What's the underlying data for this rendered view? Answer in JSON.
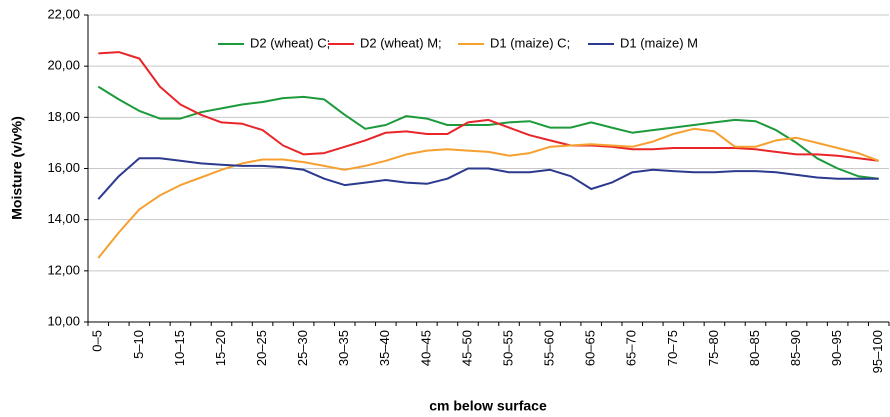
{
  "chart_data": {
    "type": "line",
    "x_label": "cm below surface",
    "y_label": "Moisture (v/v%)",
    "categories": [
      "0–5",
      null,
      "5–10",
      null,
      "10–15",
      null,
      "15–20",
      null,
      "20–25",
      null,
      "25–30",
      null,
      "30–35",
      null,
      "35–40",
      null,
      "40–45",
      null,
      "45–50",
      null,
      "50–55",
      null,
      "55–60",
      null,
      "60–65",
      null,
      "65–70",
      null,
      "70–75",
      null,
      "75–80",
      null,
      "80–85",
      null,
      "85–90",
      null,
      "90–95",
      null,
      "95–100"
    ],
    "ylim": [
      10,
      22
    ],
    "yticks": [
      {
        "value": 10,
        "label": "10,00"
      },
      {
        "value": 12,
        "label": "12,00"
      },
      {
        "value": 14,
        "label": "14,00"
      },
      {
        "value": 16,
        "label": "16,00"
      },
      {
        "value": 18,
        "label": "18,00"
      },
      {
        "value": 20,
        "label": "20,00"
      },
      {
        "value": 22,
        "label": "22,00"
      }
    ],
    "grid": true,
    "legend": "top",
    "series": [
      {
        "name": "D2 (wheat) C;",
        "color": "#1c9a3c",
        "values": [
          19.2,
          18.7,
          18.25,
          17.95,
          17.95,
          18.2,
          18.35,
          18.5,
          18.6,
          18.75,
          18.8,
          18.7,
          18.1,
          17.55,
          17.7,
          18.05,
          17.95,
          17.7,
          17.7,
          17.7,
          17.8,
          17.85,
          17.6,
          17.6,
          17.8,
          17.6,
          17.4,
          17.5,
          17.6,
          17.7,
          17.8,
          17.9,
          17.85,
          17.5,
          17.0,
          16.4,
          16.0,
          15.7,
          15.6
        ]
      },
      {
        "name": "D2 (wheat) M;",
        "color": "#e8262a",
        "values": [
          20.5,
          20.55,
          20.3,
          19.2,
          18.5,
          18.1,
          17.8,
          17.75,
          17.5,
          16.9,
          16.55,
          16.6,
          16.85,
          17.1,
          17.4,
          17.45,
          17.35,
          17.35,
          17.8,
          17.9,
          17.6,
          17.3,
          17.1,
          16.9,
          16.9,
          16.85,
          16.75,
          16.75,
          16.8,
          16.8,
          16.8,
          16.8,
          16.75,
          16.65,
          16.55,
          16.55,
          16.5,
          16.4,
          16.3
        ]
      },
      {
        "name": "D1 (maize) C;",
        "color": "#f5a030",
        "values": [
          12.5,
          13.5,
          14.4,
          14.95,
          15.35,
          15.65,
          15.95,
          16.2,
          16.35,
          16.35,
          16.25,
          16.1,
          15.95,
          16.1,
          16.3,
          16.55,
          16.7,
          16.75,
          16.7,
          16.65,
          16.5,
          16.6,
          16.85,
          16.9,
          16.95,
          16.9,
          16.85,
          17.05,
          17.35,
          17.55,
          17.45,
          16.85,
          16.85,
          17.1,
          17.2,
          17.0,
          16.8,
          16.6,
          16.3
        ]
      },
      {
        "name": "D1 (maize) M",
        "color": "#2b3a8f",
        "values": [
          14.8,
          15.7,
          16.4,
          16.4,
          16.3,
          16.2,
          16.15,
          16.1,
          16.1,
          16.05,
          15.95,
          15.6,
          15.35,
          15.45,
          15.55,
          15.45,
          15.4,
          15.6,
          16.0,
          16.0,
          15.85,
          15.85,
          15.95,
          15.7,
          15.2,
          15.45,
          15.85,
          15.95,
          15.9,
          15.85,
          15.85,
          15.9,
          15.9,
          15.85,
          15.75,
          15.65,
          15.6,
          15.6,
          15.6
        ]
      }
    ]
  }
}
